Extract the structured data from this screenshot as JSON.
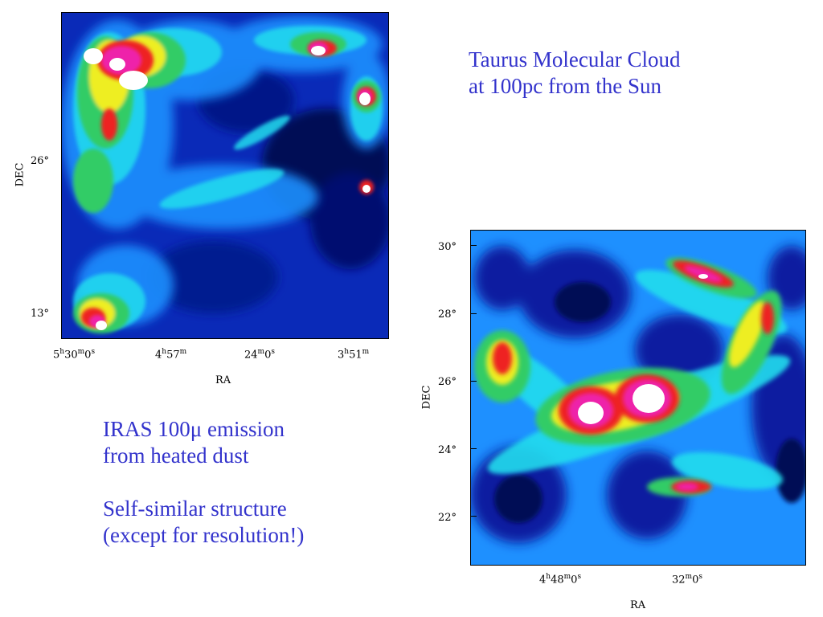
{
  "title": {
    "line1": "Taurus Molecular Cloud",
    "line2": "at 100pc from the Sun"
  },
  "notes": {
    "line1": "IRAS 100μ emission",
    "line2": "from heated dust",
    "line3": "Self-similar structure",
    "line4": "(except for resolution!)"
  },
  "map_large": {
    "y_axis_label": "DEC",
    "x_axis_label": "RA",
    "y_ticks": [
      "26°",
      "13°"
    ],
    "x_ticks": [
      {
        "h": "5",
        "m": "30",
        "s": "0"
      },
      {
        "h": "4",
        "m": "57",
        "s": ""
      },
      {
        "h": "",
        "m": "24",
        "s": "0"
      },
      {
        "h": "3",
        "m": "51",
        "s": ""
      }
    ]
  },
  "map_zoom": {
    "y_axis_label": "DEC",
    "x_axis_label": "RA",
    "y_ticks": [
      "30°",
      "28°",
      "26°",
      "24°",
      "22°"
    ],
    "x_ticks": [
      {
        "h": "4",
        "m": "48",
        "s": "0"
      },
      {
        "h": "",
        "m": "32",
        "s": "0"
      }
    ]
  },
  "colors": {
    "text_blue": "#3333cc",
    "map_low": "#00106e",
    "map_mid": "#1e90ff",
    "map_cyan": "#22ddee",
    "map_green": "#33cc66",
    "map_yellow": "#eeee22",
    "map_red": "#ee2222",
    "map_magenta": "#ee22aa",
    "map_white": "#ffffff"
  }
}
